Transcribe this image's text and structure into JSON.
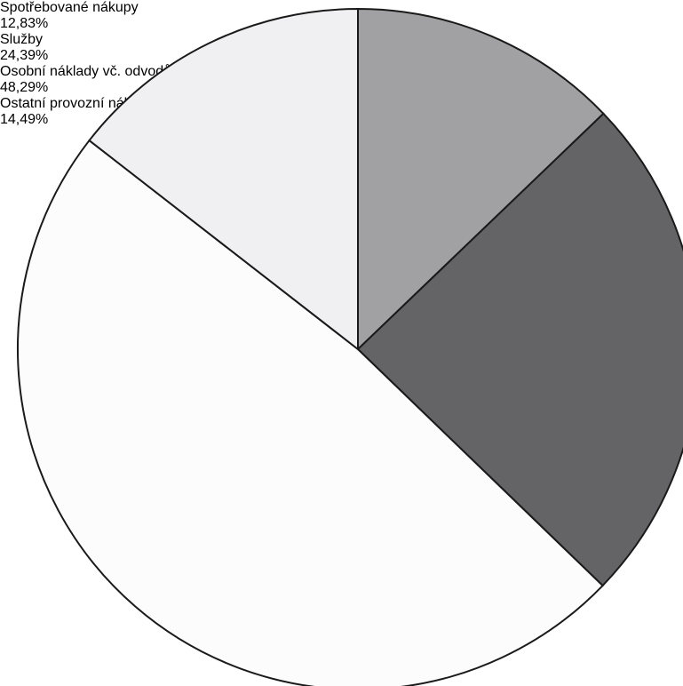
{
  "chart_data": {
    "type": "pie",
    "categories": [
      "Spotřebované nákupy",
      "Služby",
      "Osobní náklady vč. odvodů",
      "Ostatní provozní náklady"
    ],
    "values": [
      12.83,
      24.39,
      48.29,
      14.49
    ],
    "value_labels": [
      "12,83%",
      "24,39%",
      "48,29%",
      "14,49%"
    ],
    "colors": [
      "#a1a1a3",
      "#646466",
      "#fcfcfc",
      "#f0f0f2"
    ]
  }
}
